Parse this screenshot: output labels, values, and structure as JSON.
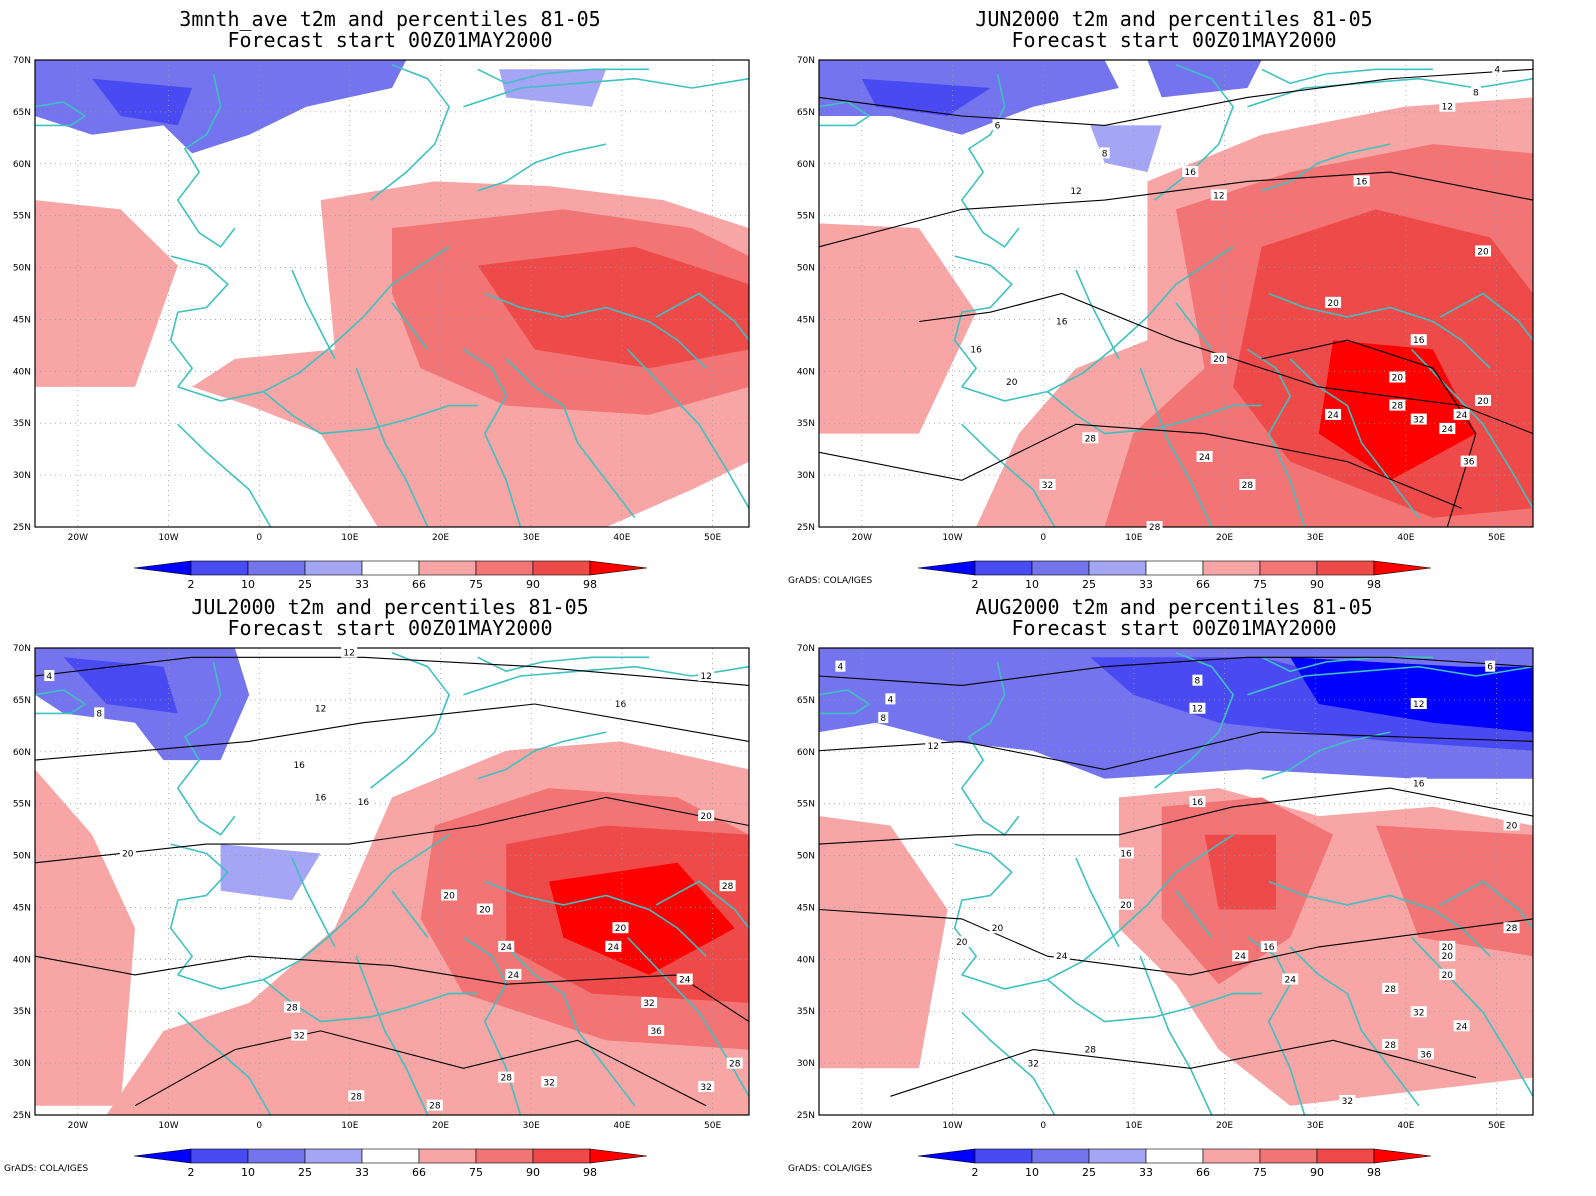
{
  "panels": [
    {
      "title_line1": "3mnth_ave t2m and percentiles 81-05",
      "title_line2": "Forecast start 00Z01MAY2000",
      "credit": ""
    },
    {
      "title_line1": "JUN2000 t2m and percentiles 81-05",
      "title_line2": "Forecast start 00Z01MAY2000",
      "credit": "GrADS: COLA/IGES"
    },
    {
      "title_line1": "JUL2000 t2m and percentiles 81-05",
      "title_line2": "Forecast start 00Z01MAY2000",
      "credit": "GrADS: COLA/IGES"
    },
    {
      "title_line1": "AUG2000 t2m and percentiles 81-05",
      "title_line2": "Forecast start 00Z01MAY2000",
      "credit": "GrADS: COLA/IGES"
    }
  ],
  "lat_labels": [
    "70N",
    "65N",
    "60N",
    "55N",
    "50N",
    "45N",
    "40N",
    "35N",
    "30N",
    "25N"
  ],
  "lon_labels": [
    "20W",
    "10W",
    "0",
    "10E",
    "20E",
    "30E",
    "40E",
    "50E"
  ],
  "colorbar": {
    "labels": [
      "2",
      "10",
      "25",
      "33",
      "66",
      "75",
      "90",
      "98"
    ],
    "colors": [
      "#0000ff",
      "#4a4af2",
      "#7474ee",
      "#a5a5f5",
      "#ffffff",
      "#f7a5a5",
      "#f27474",
      "#ee4a4a",
      "#ff0000"
    ]
  },
  "contour_labels": {
    "panel2": [
      "4",
      "8",
      "12",
      "6",
      "8",
      "12",
      "12",
      "16",
      "16",
      "16",
      "16",
      "20",
      "16",
      "20",
      "20",
      "20",
      "20",
      "24",
      "28",
      "32",
      "24",
      "28",
      "24",
      "28",
      "32",
      "36",
      "20",
      "24",
      "28"
    ],
    "panel3": [
      "4",
      "8",
      "12",
      "12",
      "12",
      "16",
      "16",
      "16",
      "16",
      "20",
      "20",
      "20",
      "24",
      "24",
      "24",
      "28",
      "20",
      "28",
      "32",
      "24",
      "32",
      "36",
      "28",
      "32",
      "32",
      "28",
      "28",
      "28",
      "20"
    ],
    "panel4": [
      "4",
      "4",
      "8",
      "8",
      "6",
      "12",
      "12",
      "12",
      "16",
      "16",
      "16",
      "20",
      "16",
      "20",
      "20",
      "20",
      "24",
      "24",
      "24",
      "28",
      "20",
      "20",
      "28",
      "32",
      "24",
      "36",
      "32",
      "32",
      "28",
      "20",
      "28"
    ]
  },
  "palette": {
    "coast": "#3ec1c1",
    "contour": "#000000"
  }
}
